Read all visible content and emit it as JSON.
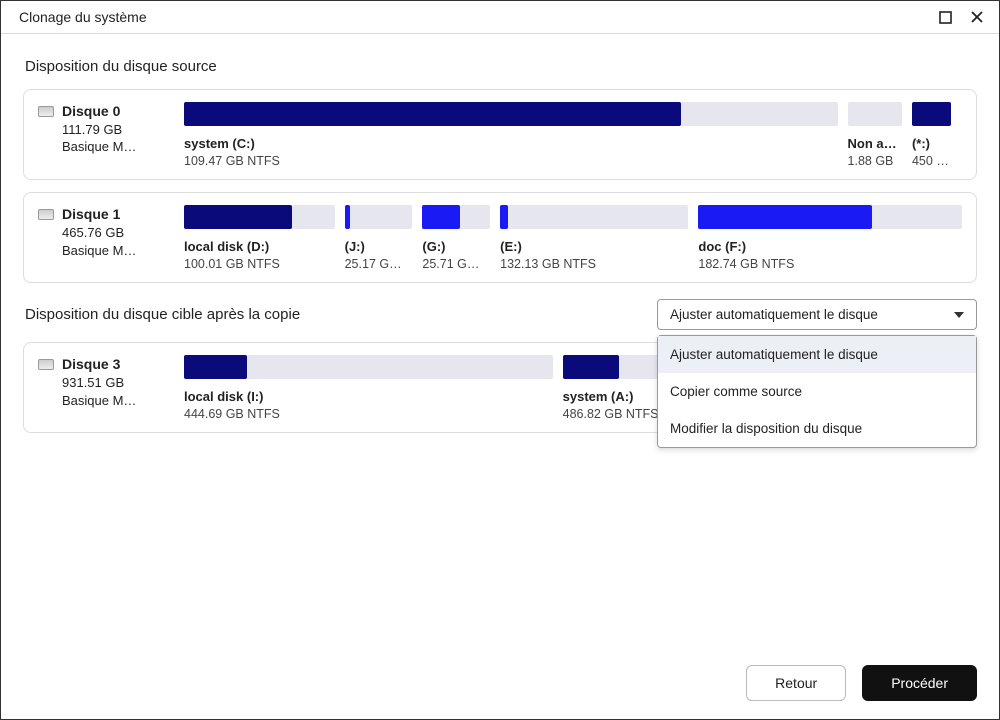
{
  "window": {
    "title": "Clonage du système"
  },
  "sections": {
    "source_title": "Disposition du disque source",
    "target_title": "Disposition du disque cible après la copie"
  },
  "disks": {
    "d0": {
      "name": "Disque 0",
      "size": "111.79 GB",
      "type": "Basique M…",
      "partitions": [
        {
          "name": "system (C:)",
          "sub": "109.47 GB NTFS",
          "width_pct": 84,
          "used_pct": 76,
          "color": "#0a0a7a"
        },
        {
          "name": "Non a…",
          "sub": "1.88 GB",
          "width_pct": 7,
          "used_pct": 0,
          "color": "#e6e6ee"
        },
        {
          "name": "(*:)",
          "sub": "450 M…",
          "width_pct": 5,
          "used_pct": 100,
          "color": "#0a0a7a"
        }
      ]
    },
    "d1": {
      "name": "Disque 1",
      "size": "465.76 GB",
      "type": "Basique M…",
      "partitions": [
        {
          "name": "local disk (D:)",
          "sub": "100.01 GB NTFS",
          "width_pct": 20,
          "used_pct": 72,
          "color": "#0a0a7a"
        },
        {
          "name": "(J:)",
          "sub": "25.17 G…",
          "width_pct": 9,
          "used_pct": 8,
          "color": "#1a1af5"
        },
        {
          "name": "(G:)",
          "sub": "25.71 G…",
          "width_pct": 9,
          "used_pct": 55,
          "color": "#1a1af5"
        },
        {
          "name": "(E:)",
          "sub": "132.13 GB NTFS",
          "width_pct": 25,
          "used_pct": 4,
          "color": "#1a1af5"
        },
        {
          "name": "doc (F:)",
          "sub": "182.74 GB NTFS",
          "width_pct": 35,
          "used_pct": 66,
          "color": "#1a1af5"
        }
      ]
    },
    "d3": {
      "name": "Disque 3",
      "size": "931.51 GB",
      "type": "Basique M…",
      "partitions": [
        {
          "name": "local disk (I:)",
          "sub": "444.69 GB NTFS",
          "width_pct": 48,
          "used_pct": 17,
          "color": "#0a0a7a"
        },
        {
          "name": "system (A:)",
          "sub": "486.82 GB NTFS",
          "width_pct": 52,
          "used_pct": 14,
          "color": "#0a0a7a"
        }
      ]
    }
  },
  "dropdown": {
    "selected": "Ajuster automatiquement le disque",
    "options": [
      "Ajuster automatiquement le disque",
      "Copier comme source",
      "Modifier la disposition du disque"
    ]
  },
  "buttons": {
    "back": "Retour",
    "proceed": "Procéder"
  },
  "colors": {
    "bar_bg": "#e6e6ee",
    "card_border": "#dddddd"
  }
}
